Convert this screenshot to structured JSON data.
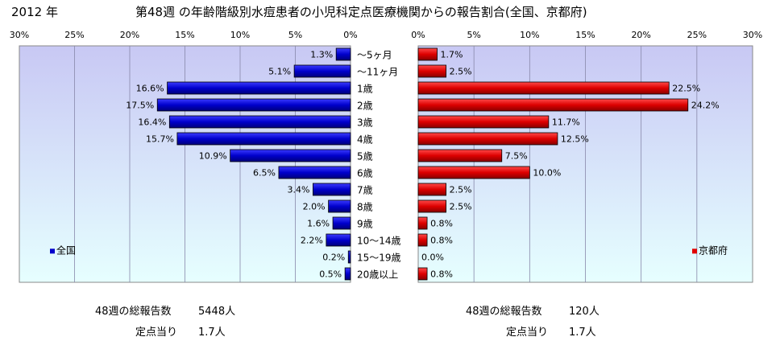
{
  "header": {
    "year_label": "2012 年",
    "title": "第48週 の年齢階級別水痘患者の小児科定点医療機関からの報告割合(全国、京都府)"
  },
  "colors": {
    "national_bar": "#0000cc",
    "kyoto_bar": "#e00000",
    "plot_bg_top": "#c8c8f4",
    "plot_bg_bottom": "#e6ffff",
    "grid": "#8888aa"
  },
  "chart_data": [
    {
      "type": "bar",
      "orientation": "horizontal",
      "direction": "right-to-left",
      "series": [
        {
          "name": "全国",
          "values": [
            1.3,
            5.1,
            16.6,
            17.5,
            16.4,
            15.7,
            10.9,
            6.5,
            3.4,
            2.0,
            1.6,
            2.2,
            0.2,
            0.5
          ]
        }
      ],
      "value_labels": [
        "1.3%",
        "5.1%",
        "16.6%",
        "17.5%",
        "16.4%",
        "15.7%",
        "10.9%",
        "6.5%",
        "3.4%",
        "2.0%",
        "1.6%",
        "2.2%",
        "0.2%",
        "0.5%"
      ],
      "xlim": [
        0,
        30
      ],
      "ticks": [
        "30%",
        "25%",
        "20%",
        "15%",
        "10%",
        "5%",
        "0%"
      ],
      "grid": true,
      "legend_position": "bottom-left"
    },
    {
      "type": "bar",
      "orientation": "horizontal",
      "direction": "left-to-right",
      "series": [
        {
          "name": "京都府",
          "values": [
            1.7,
            2.5,
            22.5,
            24.2,
            11.7,
            12.5,
            7.5,
            10.0,
            2.5,
            2.5,
            0.8,
            0.8,
            0.0,
            0.8
          ]
        }
      ],
      "value_labels": [
        "1.7%",
        "2.5%",
        "22.5%",
        "24.2%",
        "11.7%",
        "12.5%",
        "7.5%",
        "10.0%",
        "2.5%",
        "2.5%",
        "0.8%",
        "0.8%",
        "0.0%",
        "0.8%"
      ],
      "xlim": [
        0,
        30
      ],
      "ticks": [
        "0%",
        "5%",
        "10%",
        "15%",
        "20%",
        "25%",
        "30%"
      ],
      "grid": true,
      "legend_position": "bottom-right"
    }
  ],
  "categories": [
    "～5ヶ月",
    "～11ヶ月",
    "1歳",
    "2歳",
    "3歳",
    "4歳",
    "5歳",
    "6歳",
    "7歳",
    "8歳",
    "9歳",
    "10～14歳",
    "15～19歳",
    "20歳以上"
  ],
  "footer": {
    "national": {
      "total_label": "48週の総報告数",
      "total_value": "5448人",
      "per_label": "定点当り",
      "per_value": "1.7人"
    },
    "kyoto": {
      "total_label": "48週の総報告数",
      "total_value": "120人",
      "per_label": "定点当り",
      "per_value": "1.7人"
    }
  }
}
